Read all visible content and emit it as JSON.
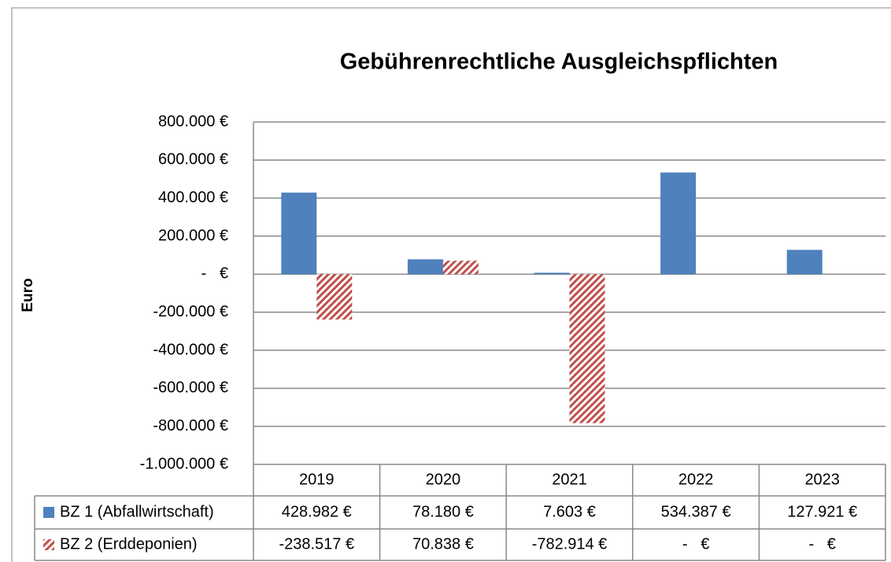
{
  "chart_data": {
    "type": "bar",
    "title": "Gebührenrechtliche Ausgleichspflichten",
    "y_label": "Euro",
    "categories": [
      "2019",
      "2020",
      "2021",
      "2022",
      "2023"
    ],
    "series": [
      {
        "name": "BZ 1 (Abfallwirtschaft)",
        "color": "#4f81bd",
        "values": [
          428982,
          78180,
          7603,
          534387,
          127921
        ],
        "value_labels": [
          "428.982 €",
          "78.180 €",
          "7.603 €",
          "534.387 €",
          "127.921 €"
        ]
      },
      {
        "name": "BZ 2 (Erddeponien)",
        "color": "#c0504d",
        "pattern": "hatch",
        "values": [
          -238517,
          70838,
          -782914,
          0,
          0
        ],
        "value_labels": [
          "-238.517 €",
          "70.838 €",
          "-782.914 €",
          "-   €",
          "-   €"
        ]
      }
    ],
    "ylim": [
      -1000000,
      800000
    ],
    "yticks": [
      {
        "value": -1000000,
        "label": "-1.000.000 €"
      },
      {
        "value": -800000,
        "label": "-800.000 €"
      },
      {
        "value": -600000,
        "label": "-600.000 €"
      },
      {
        "value": -400000,
        "label": "-400.000 €"
      },
      {
        "value": -200000,
        "label": "-200.000 €"
      },
      {
        "value": 0,
        "label": "-   €"
      },
      {
        "value": 200000,
        "label": "200.000 €"
      },
      {
        "value": 400000,
        "label": "400.000 €"
      },
      {
        "value": 600000,
        "label": "600.000 €"
      },
      {
        "value": 800000,
        "label": "800.000 €"
      }
    ],
    "grid": true
  }
}
